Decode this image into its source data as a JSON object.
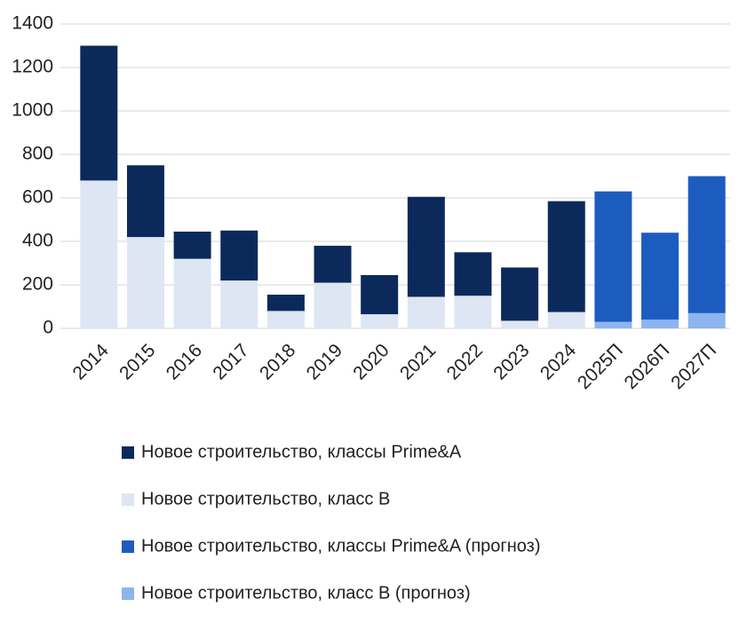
{
  "chart_data": {
    "type": "stacked_bar",
    "categories": [
      "2014",
      "2015",
      "2016",
      "2017",
      "2018",
      "2019",
      "2020",
      "2021",
      "2022",
      "2023",
      "2024",
      "2025П",
      "2026П",
      "2027П"
    ],
    "series": [
      {
        "name": "Новое строительство, классы Prime&A",
        "color": "#0b2a5b",
        "values": [
          620,
          330,
          125,
          230,
          75,
          170,
          180,
          460,
          200,
          245,
          510,
          null,
          null,
          null
        ]
      },
      {
        "name": "Новое строительство, класс B",
        "color": "#dde6f2",
        "values": [
          680,
          420,
          320,
          220,
          80,
          210,
          65,
          145,
          150,
          35,
          75,
          null,
          null,
          null
        ]
      },
      {
        "name": "Новое строительство, классы Prime&A (прогноз)",
        "color": "#1c5cbf",
        "values": [
          null,
          null,
          null,
          null,
          null,
          null,
          null,
          null,
          null,
          null,
          null,
          600,
          400,
          630
        ]
      },
      {
        "name": "Новое строительство, класс B (прогноз)",
        "color": "#8db4ef",
        "values": [
          null,
          null,
          null,
          null,
          null,
          null,
          null,
          null,
          null,
          null,
          null,
          30,
          40,
          70
        ]
      }
    ],
    "ylim": [
      0,
      1400
    ],
    "yticks": [
      0,
      200,
      400,
      600,
      800,
      1000,
      1200,
      1400
    ],
    "grid": true
  }
}
